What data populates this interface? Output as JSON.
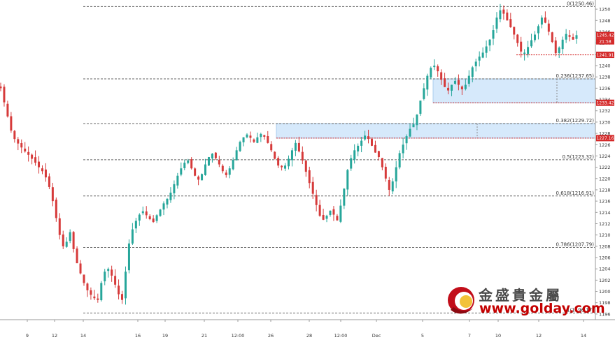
{
  "chart_data": {
    "type": "candlestick",
    "title": "",
    "xlabel": "",
    "ylabel": "",
    "ylim": [
      1195,
      1251.5
    ],
    "grid": false,
    "colors": {
      "up": "#26a69a",
      "down": "#d63a3a",
      "fib_line": "#666666",
      "zone_fill": "#d6e9fb",
      "zone_border": "#a9cdee",
      "price_tag_red": "#d42a2a",
      "support_dots": "#d42a2a"
    },
    "x_ticks": [
      "9",
      "12",
      "14",
      "16",
      "19",
      "21",
      "12:00",
      "26",
      "28",
      "12:00",
      "Dec",
      "5",
      "7",
      "10",
      "12",
      "14"
    ],
    "y_ticks": [
      1196,
      1198,
      1200,
      1202,
      1204,
      1206,
      1208,
      1210,
      1212,
      1214,
      1216,
      1218,
      1220,
      1222,
      1224,
      1226,
      1228,
      1230,
      1232,
      1234,
      1236,
      1238,
      1240,
      1242,
      1244,
      1246,
      1248,
      1250
    ],
    "fib_levels": [
      {
        "label": "0(1250.46)",
        "value": 1250.46
      },
      {
        "label": "0.236(1237.65)",
        "value": 1237.65
      },
      {
        "label": "0.382(1229.72)",
        "value": 1229.72
      },
      {
        "label": "0.5(1223.32)",
        "value": 1223.32
      },
      {
        "label": "0.618(1216.91)",
        "value": 1216.91
      },
      {
        "label": "0.786(1207.79)",
        "value": 1207.79
      },
      {
        "label": "1(1196.17)",
        "value": 1196.17
      }
    ],
    "zones": [
      {
        "y_top": 1237.65,
        "y_bottom": 1233.42,
        "x_start": "5",
        "x_end": "right-edge"
      },
      {
        "y_top": 1229.72,
        "y_bottom": 1227.16,
        "x_start": "26",
        "x_end": "right-edge"
      }
    ],
    "price_tags": [
      {
        "label": "1245.42",
        "value": 1245.42,
        "color": "#d42a2a"
      },
      {
        "label": "21:58",
        "value": 1244.3,
        "color": "#d42a2a"
      },
      {
        "label": "1241.91",
        "value": 1241.91,
        "color": "#d42a2a"
      },
      {
        "label": "1233.42",
        "value": 1233.42,
        "color": "#d42a2a"
      },
      {
        "label": "1227.16",
        "value": 1227.16,
        "color": "#d42a2a"
      }
    ],
    "support_line": {
      "value": 1241.91,
      "x_start": "12"
    },
    "series": [
      {
        "values": [
          1236.0,
          1233.5,
          1231.0,
          1228.5,
          1227.0,
          1226.2,
          1225.5,
          1224.8,
          1224.2,
          1223.5,
          1222.8,
          1222.0,
          1221.3,
          1220.2,
          1218.5,
          1216.0,
          1213.0,
          1210.0,
          1208.0,
          1208.8,
          1210.5,
          1207.5,
          1205.0,
          1203.2,
          1201.5,
          1200.2,
          1199.4,
          1198.8,
          1198.5,
          1201.5,
          1203.5,
          1204.0,
          1202.8,
          1201.2,
          1199.5,
          1198.5,
          1203.5,
          1208.5,
          1211.0,
          1212.5,
          1213.6,
          1214.2,
          1213.5,
          1212.8,
          1212.3,
          1213.5,
          1214.5,
          1215.6,
          1216.4,
          1217.5,
          1219.0,
          1220.5,
          1221.8,
          1222.8,
          1223.2,
          1221.8,
          1220.5,
          1219.8,
          1220.8,
          1222.5,
          1223.8,
          1224.4,
          1223.6,
          1222.5,
          1221.3,
          1220.6,
          1221.8,
          1223.3,
          1225.0,
          1226.5,
          1227.3,
          1227.8,
          1227.2,
          1226.5,
          1227.3,
          1227.9,
          1227.4,
          1226.3,
          1225.0,
          1223.5,
          1222.3,
          1222.0,
          1222.3,
          1223.5,
          1225.0,
          1226.3,
          1224.8,
          1223.2,
          1221.2,
          1219.2,
          1217.3,
          1215.3,
          1213.4,
          1212.7,
          1213.4,
          1214.3,
          1213.6,
          1212.6,
          1215.2,
          1218.2,
          1221.5,
          1223.6,
          1225.0,
          1225.8,
          1226.7,
          1227.6,
          1227.0,
          1225.8,
          1224.6,
          1223.8,
          1222.0,
          1220.0,
          1218.0,
          1219.5,
          1222.0,
          1224.5,
          1226.0,
          1227.5,
          1228.8,
          1229.6,
          1231.3,
          1233.8,
          1236.0,
          1238.2,
          1239.6,
          1240.0,
          1239.0,
          1237.5,
          1236.2,
          1235.6,
          1236.6,
          1237.3,
          1236.6,
          1235.8,
          1236.6,
          1238.2,
          1239.7,
          1240.7,
          1241.6,
          1242.3,
          1243.4,
          1244.6,
          1246.3,
          1248.5,
          1249.8,
          1249.2,
          1248.0,
          1246.8,
          1245.5,
          1244.0,
          1242.5,
          1242.3,
          1243.3,
          1244.5,
          1245.5,
          1247.0,
          1248.5,
          1247.6,
          1246.0,
          1244.2,
          1242.2,
          1243.2,
          1244.6,
          1245.6,
          1245.1,
          1244.6,
          1245.4
        ]
      }
    ]
  },
  "logo": {
    "chinese_name": "金盛貴金屬",
    "url_text": "www.golday.com"
  }
}
